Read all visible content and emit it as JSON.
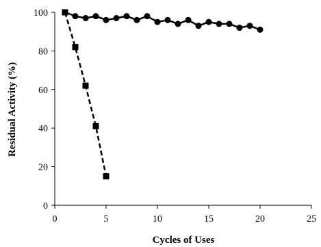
{
  "chart_data": {
    "type": "line",
    "xlabel": "Cycles of Uses",
    "ylabel": "Residual Activity (%)",
    "xlim": [
      0,
      25
    ],
    "ylim": [
      0,
      100
    ],
    "xticks": [
      0,
      5,
      10,
      15,
      20,
      25
    ],
    "yticks": [
      0,
      20,
      40,
      60,
      80,
      100
    ],
    "grid": false,
    "series": [
      {
        "marker": "circle",
        "line_style": "solid",
        "color": "#000000",
        "x": [
          1,
          2,
          3,
          4,
          5,
          6,
          7,
          8,
          9,
          10,
          11,
          12,
          13,
          14,
          15,
          16,
          17,
          18,
          19,
          20
        ],
        "y": [
          100,
          98,
          97,
          98,
          96,
          97,
          98,
          96,
          98,
          95,
          96,
          94,
          96,
          93,
          95,
          94,
          94,
          92,
          93,
          91
        ]
      },
      {
        "marker": "square",
        "line_style": "dashed",
        "color": "#000000",
        "x": [
          1,
          2,
          3,
          4,
          5
        ],
        "y": [
          100,
          82,
          62,
          41,
          15
        ]
      }
    ]
  }
}
